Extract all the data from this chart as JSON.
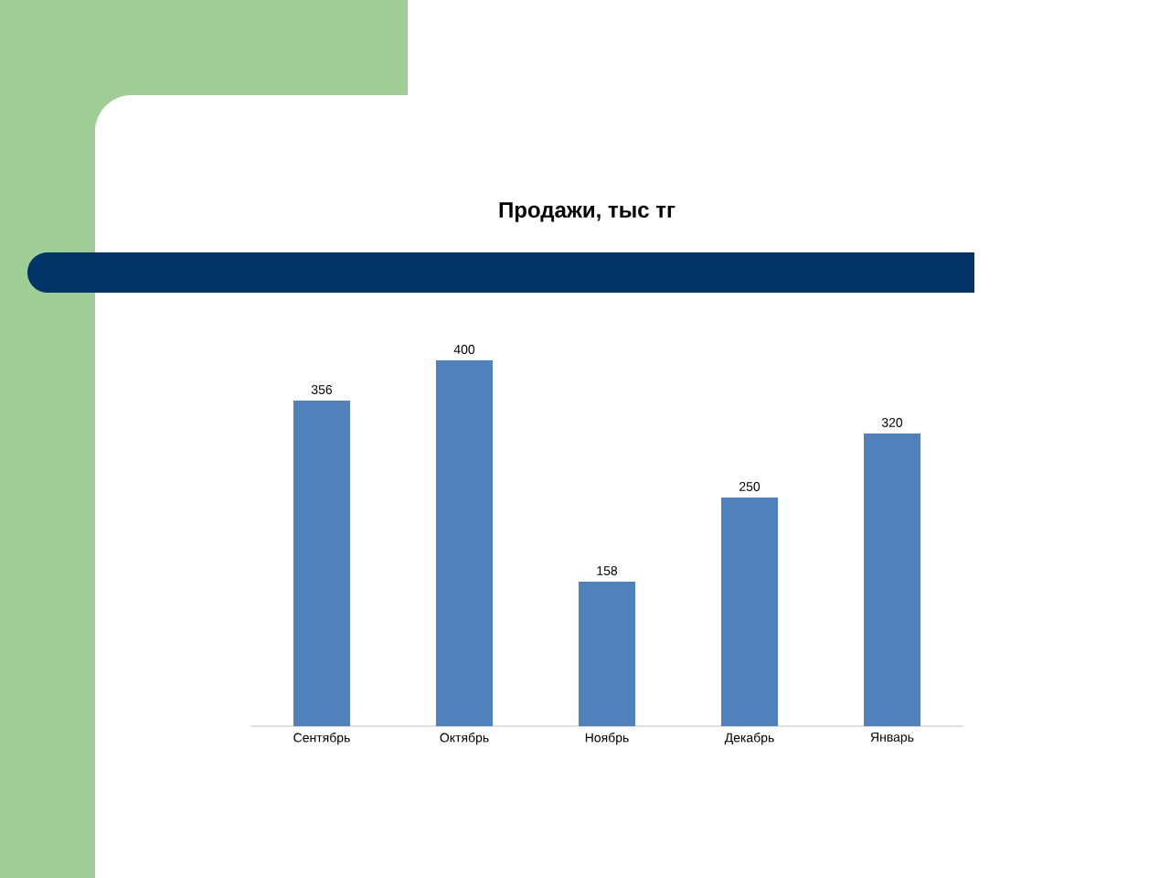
{
  "chart_data": {
    "type": "bar",
    "title": "Продажи, тыс тг",
    "categories": [
      "Сентябрь",
      "Октябрь",
      "Ноябрь",
      "Декабрь",
      "Январь"
    ],
    "values": [
      356,
      400,
      158,
      250,
      320
    ],
    "color": "#4f81bd",
    "data_labels": true
  }
}
